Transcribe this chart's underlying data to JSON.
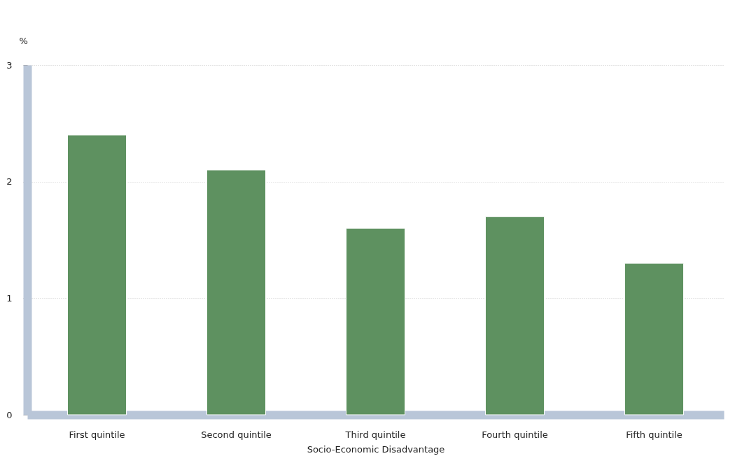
{
  "chart_data": {
    "type": "bar",
    "xlabel": "Socio-Economic Disadvantage",
    "ylabel": "%",
    "categories": [
      "First quintile",
      "Second quintile",
      "Third quintile",
      "Fourth quintile",
      "Fifth quintile"
    ],
    "values": [
      2.4,
      2.1,
      1.6,
      1.7,
      1.3
    ],
    "color": "#5e9160",
    "ylim": [
      0,
      3
    ],
    "yticks": [
      0,
      1,
      2,
      3
    ],
    "grid": "y"
  }
}
